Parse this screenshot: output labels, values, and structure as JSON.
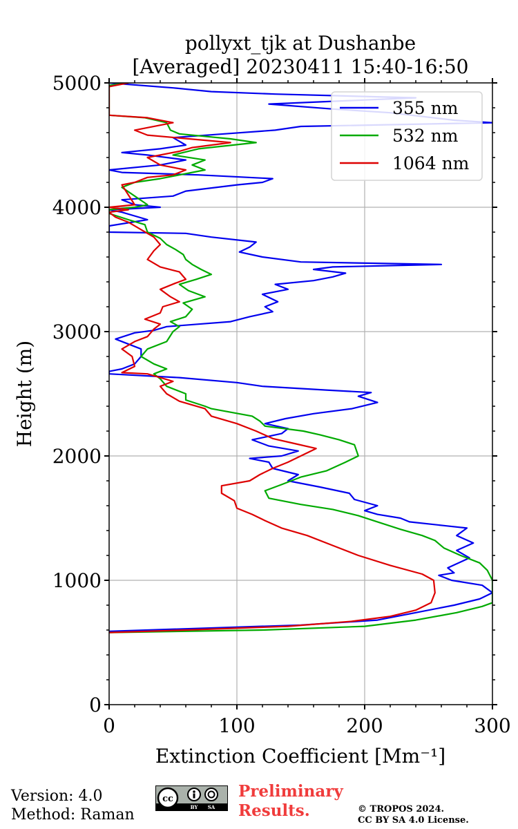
{
  "chart_data": {
    "type": "line",
    "title": "pollyxt_tjk at Dushanbe",
    "subtitle": "[Averaged] 20230411 15:40-16:50",
    "xlabel": "Extinction Coefficient [Mm⁻¹]",
    "ylabel": "Height (m)",
    "xlim": [
      0,
      300
    ],
    "ylim": [
      0,
      5000
    ],
    "xticks": [
      0,
      100,
      200,
      300
    ],
    "yticks": [
      0,
      1000,
      2000,
      3000,
      4000,
      5000
    ],
    "grid": true,
    "legend_position": "top-right",
    "series": [
      {
        "name": "355 nm",
        "color": "#0000ee",
        "points": [
          [
            0,
            590
          ],
          [
            60,
            610
          ],
          [
            150,
            640
          ],
          [
            210,
            680
          ],
          [
            240,
            740
          ],
          [
            270,
            800
          ],
          [
            290,
            850
          ],
          [
            300,
            900
          ],
          [
            292,
            960
          ],
          [
            268,
            1000
          ],
          [
            258,
            1040
          ],
          [
            270,
            1060
          ],
          [
            265,
            1100
          ],
          [
            282,
            1180
          ],
          [
            272,
            1240
          ],
          [
            285,
            1300
          ],
          [
            272,
            1360
          ],
          [
            280,
            1420
          ],
          [
            262,
            1440
          ],
          [
            235,
            1470
          ],
          [
            228,
            1500
          ],
          [
            210,
            1530
          ],
          [
            200,
            1560
          ],
          [
            210,
            1600
          ],
          [
            192,
            1650
          ],
          [
            188,
            1700
          ],
          [
            165,
            1750
          ],
          [
            140,
            1800
          ],
          [
            148,
            1850
          ],
          [
            128,
            1900
          ],
          [
            125,
            1950
          ],
          [
            110,
            1980
          ],
          [
            135,
            2000
          ],
          [
            148,
            2040
          ],
          [
            125,
            2080
          ],
          [
            112,
            2130
          ],
          [
            135,
            2180
          ],
          [
            140,
            2220
          ],
          [
            122,
            2260
          ],
          [
            138,
            2300
          ],
          [
            160,
            2340
          ],
          [
            190,
            2380
          ],
          [
            210,
            2430
          ],
          [
            195,
            2480
          ],
          [
            205,
            2510
          ],
          [
            170,
            2530
          ],
          [
            120,
            2560
          ],
          [
            100,
            2590
          ],
          [
            55,
            2630
          ],
          [
            0,
            2660
          ],
          [
            0,
            2680
          ],
          [
            10,
            2700
          ],
          [
            20,
            2740
          ],
          [
            25,
            2800
          ],
          [
            25,
            2860
          ],
          [
            5,
            2940
          ],
          [
            20,
            2990
          ],
          [
            35,
            3010
          ],
          [
            45,
            3040
          ],
          [
            70,
            3060
          ],
          [
            95,
            3080
          ],
          [
            110,
            3120
          ],
          [
            128,
            3160
          ],
          [
            122,
            3200
          ],
          [
            132,
            3240
          ],
          [
            120,
            3300
          ],
          [
            140,
            3340
          ],
          [
            130,
            3380
          ],
          [
            160,
            3410
          ],
          [
            175,
            3440
          ],
          [
            185,
            3470
          ],
          [
            160,
            3500
          ],
          [
            175,
            3520
          ],
          [
            260,
            3540
          ],
          [
            150,
            3560
          ],
          [
            120,
            3600
          ],
          [
            102,
            3640
          ],
          [
            110,
            3680
          ],
          [
            115,
            3720
          ],
          [
            80,
            3760
          ],
          [
            60,
            3790
          ],
          [
            0,
            3800
          ],
          [
            0,
            3850
          ],
          [
            30,
            3900
          ],
          [
            10,
            3960
          ],
          [
            0,
            3980
          ],
          [
            40,
            4000
          ],
          [
            20,
            4020
          ],
          [
            10,
            4060
          ],
          [
            50,
            4090
          ],
          [
            60,
            4130
          ],
          [
            100,
            4180
          ],
          [
            120,
            4200
          ],
          [
            128,
            4230
          ],
          [
            70,
            4260
          ],
          [
            10,
            4280
          ],
          [
            0,
            4300
          ],
          [
            40,
            4340
          ],
          [
            60,
            4380
          ],
          [
            30,
            4420
          ],
          [
            10,
            4440
          ],
          [
            40,
            4470
          ],
          [
            60,
            4500
          ],
          [
            50,
            4560
          ],
          [
            90,
            4590
          ],
          [
            130,
            4620
          ],
          [
            150,
            4650
          ],
          [
            300,
            4680
          ],
          [
            270,
            4700
          ],
          [
            220,
            4760
          ],
          [
            175,
            4790
          ],
          [
            125,
            4830
          ],
          [
            240,
            4880
          ],
          [
            130,
            4910
          ],
          [
            80,
            4930
          ],
          [
            50,
            4960
          ],
          [
            0,
            5000
          ]
        ]
      },
      {
        "name": "532 nm",
        "color": "#00aa00",
        "points": [
          [
            0,
            580
          ],
          [
            120,
            600
          ],
          [
            200,
            630
          ],
          [
            240,
            680
          ],
          [
            272,
            740
          ],
          [
            292,
            790
          ],
          [
            300,
            820
          ],
          [
            300,
            1000
          ],
          [
            296,
            1080
          ],
          [
            290,
            1140
          ],
          [
            275,
            1200
          ],
          [
            262,
            1260
          ],
          [
            255,
            1320
          ],
          [
            245,
            1360
          ],
          [
            228,
            1410
          ],
          [
            210,
            1470
          ],
          [
            195,
            1520
          ],
          [
            175,
            1570
          ],
          [
            150,
            1610
          ],
          [
            125,
            1660
          ],
          [
            122,
            1720
          ],
          [
            135,
            1770
          ],
          [
            150,
            1830
          ],
          [
            170,
            1880
          ],
          [
            185,
            1950
          ],
          [
            195,
            2000
          ],
          [
            192,
            2090
          ],
          [
            180,
            2130
          ],
          [
            165,
            2170
          ],
          [
            152,
            2200
          ],
          [
            122,
            2240
          ],
          [
            118,
            2280
          ],
          [
            112,
            2320
          ],
          [
            80,
            2380
          ],
          [
            75,
            2400
          ],
          [
            60,
            2450
          ],
          [
            60,
            2500
          ],
          [
            45,
            2560
          ],
          [
            40,
            2620
          ],
          [
            35,
            2660
          ],
          [
            45,
            2700
          ],
          [
            35,
            2740
          ],
          [
            25,
            2800
          ],
          [
            30,
            2860
          ],
          [
            45,
            2920
          ],
          [
            50,
            3000
          ],
          [
            55,
            3040
          ],
          [
            48,
            3080
          ],
          [
            60,
            3120
          ],
          [
            65,
            3180
          ],
          [
            58,
            3230
          ],
          [
            75,
            3280
          ],
          [
            62,
            3330
          ],
          [
            55,
            3380
          ],
          [
            68,
            3420
          ],
          [
            80,
            3460
          ],
          [
            72,
            3500
          ],
          [
            65,
            3540
          ],
          [
            60,
            3580
          ],
          [
            58,
            3620
          ],
          [
            52,
            3660
          ],
          [
            45,
            3700
          ],
          [
            40,
            3750
          ],
          [
            30,
            3800
          ],
          [
            28,
            3860
          ],
          [
            15,
            3900
          ],
          [
            0,
            3950
          ],
          [
            0,
            3980
          ],
          [
            20,
            4000
          ],
          [
            30,
            4020
          ],
          [
            10,
            4160
          ],
          [
            20,
            4200
          ],
          [
            40,
            4230
          ],
          [
            55,
            4260
          ],
          [
            75,
            4300
          ],
          [
            65,
            4340
          ],
          [
            75,
            4380
          ],
          [
            50,
            4420
          ],
          [
            70,
            4470
          ],
          [
            115,
            4520
          ],
          [
            95,
            4550
          ],
          [
            55,
            4590
          ],
          [
            48,
            4620
          ],
          [
            45,
            4680
          ],
          [
            28,
            4720
          ],
          [
            0,
            4740
          ],
          [
            0,
            4980
          ],
          [
            15,
            5000
          ]
        ]
      },
      {
        "name": "1064 nm",
        "color": "#dd0000",
        "points": [
          [
            0,
            580
          ],
          [
            60,
            600
          ],
          [
            140,
            630
          ],
          [
            190,
            670
          ],
          [
            220,
            710
          ],
          [
            240,
            760
          ],
          [
            252,
            820
          ],
          [
            255,
            900
          ],
          [
            254,
            1000
          ],
          [
            245,
            1050
          ],
          [
            220,
            1120
          ],
          [
            195,
            1200
          ],
          [
            175,
            1280
          ],
          [
            155,
            1360
          ],
          [
            135,
            1420
          ],
          [
            122,
            1480
          ],
          [
            112,
            1530
          ],
          [
            100,
            1580
          ],
          [
            98,
            1640
          ],
          [
            88,
            1700
          ],
          [
            88,
            1760
          ],
          [
            110,
            1800
          ],
          [
            118,
            1850
          ],
          [
            128,
            1900
          ],
          [
            140,
            1950
          ],
          [
            150,
            2000
          ],
          [
            162,
            2060
          ],
          [
            145,
            2100
          ],
          [
            128,
            2140
          ],
          [
            115,
            2200
          ],
          [
            100,
            2260
          ],
          [
            80,
            2320
          ],
          [
            75,
            2380
          ],
          [
            55,
            2440
          ],
          [
            45,
            2500
          ],
          [
            40,
            2560
          ],
          [
            50,
            2600
          ],
          [
            30,
            2660
          ],
          [
            10,
            2670
          ],
          [
            20,
            2720
          ],
          [
            18,
            2800
          ],
          [
            10,
            2860
          ],
          [
            20,
            2920
          ],
          [
            30,
            2960
          ],
          [
            35,
            3020
          ],
          [
            40,
            3060
          ],
          [
            28,
            3100
          ],
          [
            40,
            3150
          ],
          [
            42,
            3200
          ],
          [
            55,
            3240
          ],
          [
            48,
            3280
          ],
          [
            40,
            3340
          ],
          [
            52,
            3390
          ],
          [
            60,
            3420
          ],
          [
            55,
            3480
          ],
          [
            40,
            3520
          ],
          [
            30,
            3580
          ],
          [
            35,
            3650
          ],
          [
            40,
            3700
          ],
          [
            35,
            3760
          ],
          [
            25,
            3820
          ],
          [
            15,
            3880
          ],
          [
            5,
            3920
          ],
          [
            0,
            3960
          ],
          [
            15,
            3980
          ],
          [
            0,
            4000
          ],
          [
            20,
            4020
          ],
          [
            10,
            4180
          ],
          [
            20,
            4200
          ],
          [
            30,
            4240
          ],
          [
            50,
            4260
          ],
          [
            60,
            4300
          ],
          [
            40,
            4340
          ],
          [
            30,
            4400
          ],
          [
            55,
            4450
          ],
          [
            65,
            4480
          ],
          [
            95,
            4520
          ],
          [
            30,
            4580
          ],
          [
            20,
            4620
          ],
          [
            50,
            4680
          ],
          [
            30,
            4720
          ],
          [
            0,
            4740
          ],
          [
            0,
            4970
          ],
          [
            15,
            5000
          ]
        ]
      }
    ]
  },
  "footer": {
    "version": "Version: 4.0",
    "method": "Method: Raman",
    "preliminary": "Preliminary Results.",
    "copyright_line1": "© TROPOS 2024.",
    "copyright_line2": "CC BY SA 4.0 License."
  }
}
